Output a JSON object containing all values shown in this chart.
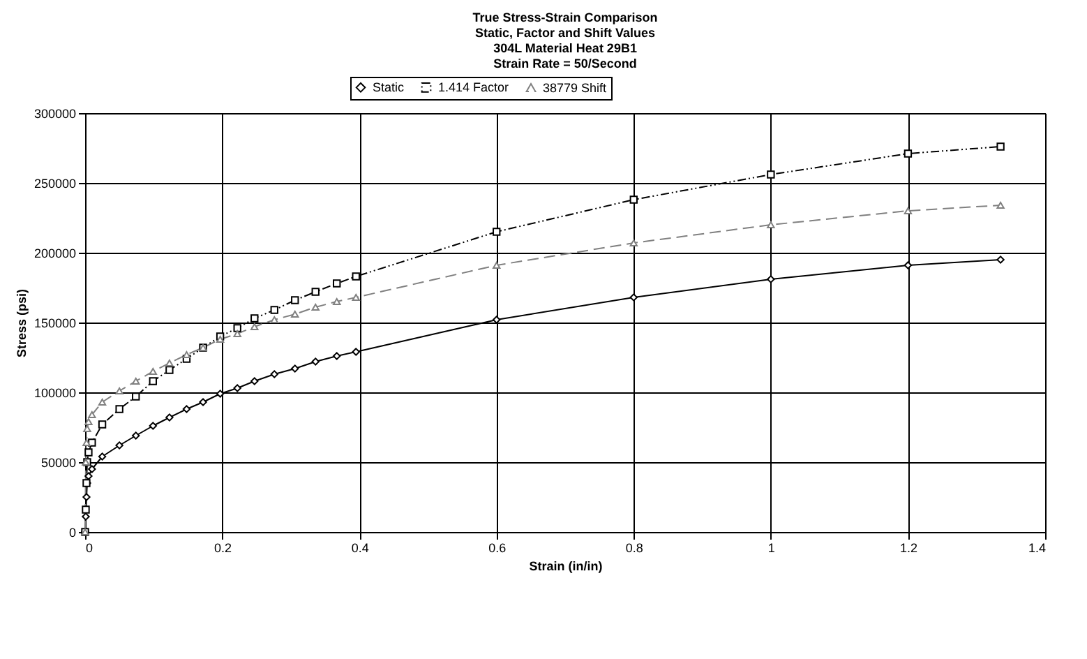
{
  "chart_data": {
    "type": "line",
    "title": "True Stress-Strain Comparison",
    "subtitle": "Static, Factor and Shift Values\n304L Material Heat 29B1\nStrain Rate = 50/Second",
    "xlabel": "Strain (in/in)",
    "ylabel": "Stress (psi)",
    "x": [
      0,
      0.001,
      0.002,
      0.003,
      0.005,
      0.01,
      0.025,
      0.05,
      0.074,
      0.099,
      0.123,
      0.148,
      0.172,
      0.197,
      0.222,
      0.247,
      0.276,
      0.306,
      0.336,
      0.367,
      0.395,
      0.6,
      0.8,
      1.0,
      1.2,
      1.335
    ],
    "series": [
      {
        "name": "Static",
        "color": "#000000",
        "marker": "diamond",
        "line_style": "solid",
        "values": [
          0,
          11000,
          25000,
          35000,
          40000,
          45000,
          54000,
          62000,
          69000,
          76000,
          82000,
          88000,
          93000,
          99000,
          103000,
          108000,
          113000,
          117000,
          122000,
          126000,
          129000,
          152000,
          168000,
          181000,
          191000,
          195000
        ]
      },
      {
        "name": "1.414 Factor",
        "color": "#000000",
        "marker": "square",
        "line_style": "dotted",
        "values": [
          0,
          16000,
          35000,
          50000,
          57000,
          64000,
          77000,
          88000,
          97000,
          108000,
          116000,
          124000,
          132000,
          140000,
          146000,
          153000,
          159000,
          166000,
          172000,
          178000,
          183000,
          215000,
          238000,
          256000,
          271000,
          276000
        ]
      },
      {
        "name": "38779 Shift",
        "color": "#808080",
        "marker": "triangle",
        "line_style": "dashed",
        "values": [
          0,
          50000,
          64000,
          74000,
          79000,
          84000,
          93000,
          101000,
          108000,
          115000,
          121000,
          127000,
          132000,
          138000,
          142000,
          147000,
          152000,
          156000,
          161000,
          165000,
          168000,
          191000,
          207000,
          220000,
          230000,
          234000
        ]
      }
    ],
    "xlim": [
      0,
      1.4
    ],
    "xticks": [
      0,
      0.2,
      0.4,
      0.6,
      0.8,
      1,
      1.2,
      1.4
    ],
    "ylim": [
      0,
      300000
    ],
    "yticks": [
      0,
      50000,
      100000,
      150000,
      200000,
      250000,
      300000
    ],
    "grid": true,
    "legend": "top"
  }
}
